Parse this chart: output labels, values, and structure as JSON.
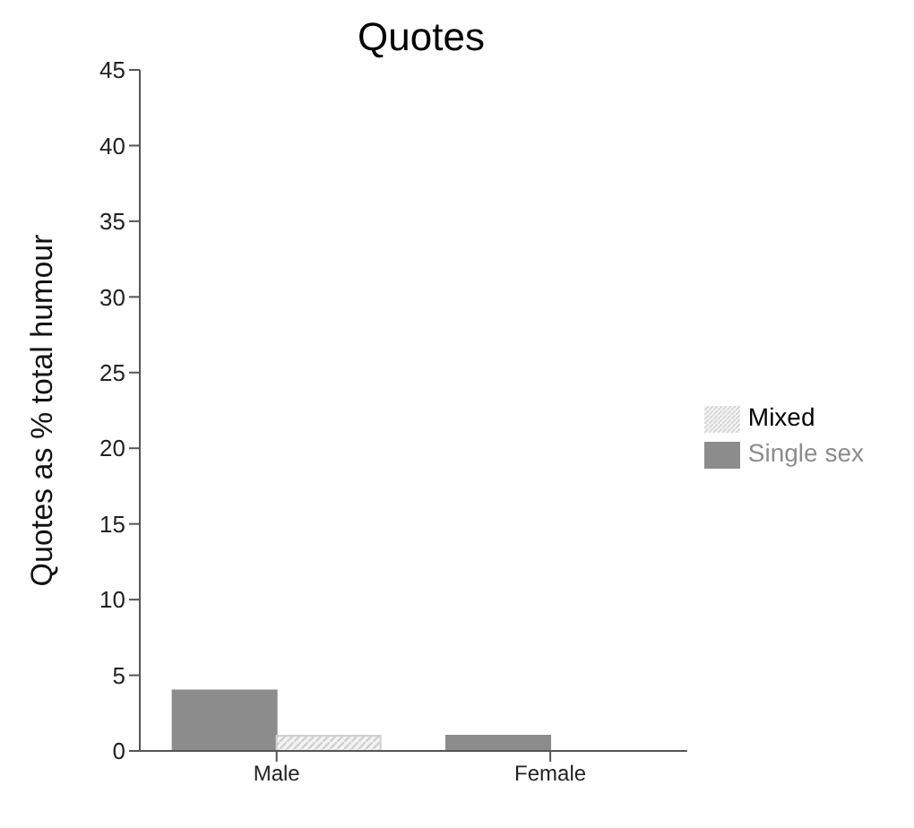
{
  "chart_data": {
    "type": "bar",
    "title": "Quotes",
    "ylabel": "Quotes as % total humour",
    "categories": [
      "Male",
      "Female"
    ],
    "series": [
      {
        "name": "Single sex",
        "color": "#8c8c8c",
        "values": [
          4,
          1
        ]
      },
      {
        "name": "Mixed",
        "color": "#d0d0d0",
        "values": [
          1,
          0
        ]
      }
    ],
    "ylim": [
      0,
      45
    ],
    "yticks": [
      0,
      5,
      10,
      15,
      20,
      25,
      30,
      35,
      40,
      45
    ],
    "grid": false,
    "legend": "right"
  }
}
